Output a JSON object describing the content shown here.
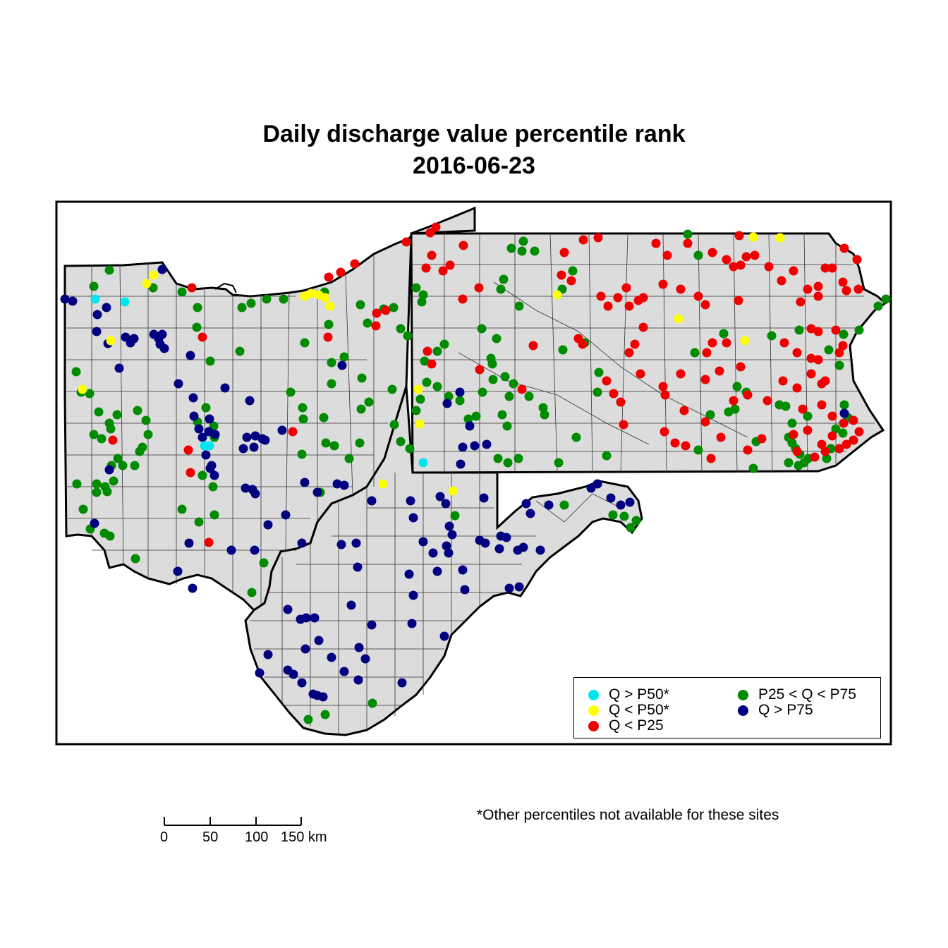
{
  "title": {
    "line1": "Daily discharge value percentile rank",
    "line2": "2016-06-23"
  },
  "legend": {
    "items": [
      {
        "key": "q_gt_p50",
        "label": "Q > P50*",
        "color": "#00E5EE"
      },
      {
        "key": "q_lt_p50",
        "label": "Q < P50*",
        "color": "#FFFF00"
      },
      {
        "key": "q_lt_p25",
        "label": "Q < P25",
        "color": "#EE0000"
      },
      {
        "key": "p25_q_p75",
        "label": "P25 < Q < P75",
        "color": "#008B00"
      },
      {
        "key": "q_gt_p75",
        "label": "Q > P75",
        "color": "#000080"
      }
    ]
  },
  "scale_bar": {
    "ticks": [
      "0",
      "50",
      "100",
      "150 km"
    ]
  },
  "footnote": "*Other percentiles not available for these sites",
  "map_colors": {
    "land_fill": "#DCDCDC",
    "border": "#000000",
    "county_line": "#333333"
  }
}
